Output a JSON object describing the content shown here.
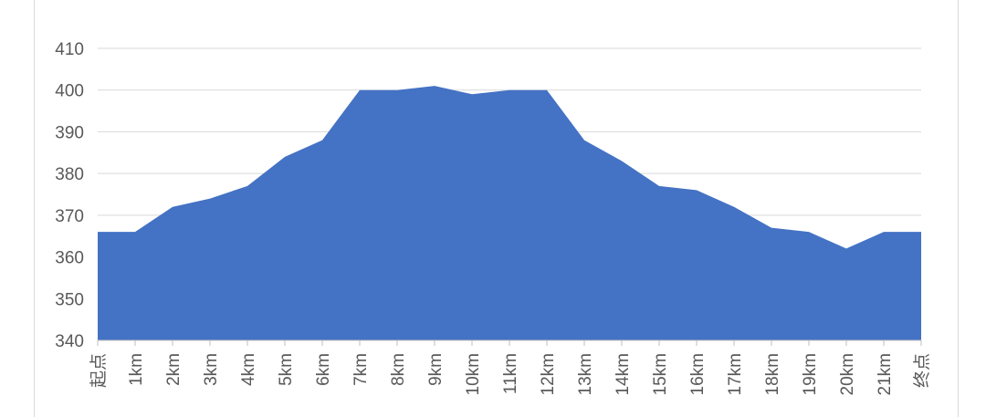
{
  "chart_data": {
    "type": "area",
    "title": "",
    "xlabel": "",
    "ylabel": "",
    "ylim": [
      340,
      410
    ],
    "y_ticks": [
      340,
      350,
      360,
      370,
      380,
      390,
      400,
      410
    ],
    "grid": true,
    "legend": "none",
    "categories": [
      "起点",
      "1km",
      "2km",
      "3km",
      "4km",
      "5km",
      "6km",
      "7km",
      "8km",
      "9km",
      "10km",
      "11km",
      "12km",
      "13km",
      "14km",
      "15km",
      "16km",
      "17km",
      "18km",
      "19km",
      "20km",
      "21km",
      "终点"
    ],
    "series": [
      {
        "values": [
          366,
          366,
          372,
          374,
          377,
          384,
          388,
          400,
          400,
          401,
          399,
          400,
          400,
          388,
          383,
          377,
          376,
          372,
          367,
          366,
          362,
          366,
          366
        ]
      }
    ],
    "colors": {
      "fill": "#4472C4",
      "grid": "#d9d9d9",
      "axis": "#bfbfbf",
      "text": "#595959"
    }
  }
}
